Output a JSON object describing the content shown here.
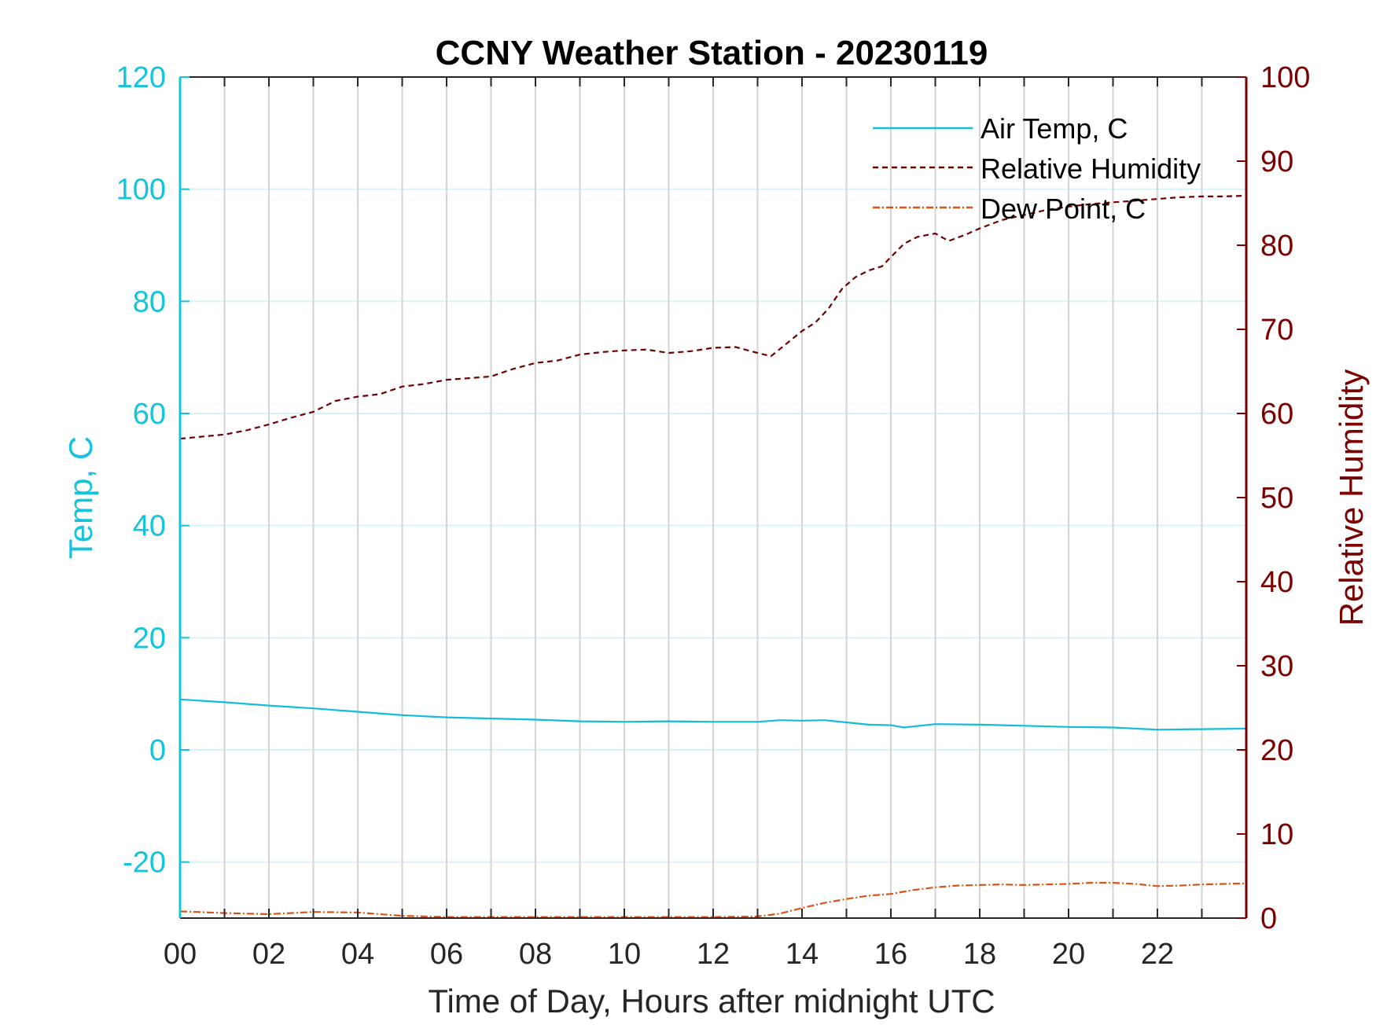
{
  "chart_data": {
    "type": "line",
    "title": "CCNY Weather Station - 20230119",
    "xlabel": "Time of Day, Hours after midnight UTC",
    "ylabel_left": "Temp, C",
    "ylabel_right": "Relative Humidity",
    "xlim": [
      0,
      24
    ],
    "ylim_left": [
      -30,
      120
    ],
    "ylim_right": [
      0,
      100
    ],
    "x_ticks": [
      0,
      2,
      4,
      6,
      8,
      10,
      12,
      14,
      16,
      18,
      20,
      22
    ],
    "x_tick_labels": [
      "00",
      "02",
      "04",
      "06",
      "08",
      "10",
      "12",
      "14",
      "16",
      "18",
      "20",
      "22"
    ],
    "y_left_ticks": [
      -20,
      0,
      20,
      40,
      60,
      80,
      100,
      120
    ],
    "y_left_tick_labels": [
      "-20",
      "0",
      "20",
      "40",
      "60",
      "80",
      "100",
      "120"
    ],
    "y_right_ticks": [
      0,
      10,
      20,
      30,
      40,
      50,
      60,
      70,
      80,
      90,
      100
    ],
    "y_right_tick_labels": [
      "0",
      "10",
      "20",
      "30",
      "40",
      "50",
      "60",
      "70",
      "80",
      "90",
      "100"
    ],
    "grid": true,
    "legend_position": "top-right",
    "colors": {
      "left_axis": "#14c3dc",
      "right_axis": "#7a0000",
      "air_temp": "#14bcd9",
      "rh": "#6e0000",
      "dew_point": "#d95319",
      "grid_vertical": "#d4d4d4",
      "grid_horizontal": "#d6f3f7"
    },
    "series": [
      {
        "name": "Air Temp, C",
        "axis": "left",
        "style": "solid",
        "x": [
          0,
          1,
          2,
          3,
          4,
          5,
          6,
          7,
          8,
          9,
          10,
          11,
          12,
          13,
          13.5,
          14,
          14.5,
          15,
          15.5,
          16,
          16.3,
          17,
          18,
          19,
          20,
          21,
          22,
          23,
          24
        ],
        "y": [
          9.0,
          8.5,
          7.9,
          7.4,
          6.8,
          6.2,
          5.8,
          5.6,
          5.4,
          5.1,
          5.0,
          5.1,
          5.0,
          5.0,
          5.3,
          5.2,
          5.3,
          4.9,
          4.5,
          4.4,
          4.0,
          4.6,
          4.5,
          4.3,
          4.1,
          4.0,
          3.6,
          3.7,
          3.8
        ]
      },
      {
        "name": "Relative Humidity",
        "axis": "right",
        "style": "dashed",
        "x": [
          0,
          1,
          1.5,
          2,
          2.5,
          3,
          3.5,
          4,
          4.5,
          5,
          5.5,
          6,
          6.5,
          7,
          7.5,
          8,
          8.5,
          9,
          9.5,
          10,
          10.5,
          11,
          11.5,
          12,
          12.5,
          13,
          13.3,
          13.7,
          14,
          14.3,
          14.6,
          14.9,
          15.2,
          15.5,
          15.8,
          16,
          16.3,
          16.6,
          17,
          17.3,
          17.7,
          18,
          18.5,
          19,
          19.5,
          20,
          20.5,
          21,
          21.5,
          22,
          22.5,
          23,
          23.5,
          24
        ],
        "y": [
          57,
          57.5,
          58,
          58.7,
          59.5,
          60.2,
          61.5,
          62,
          62.3,
          63.2,
          63.5,
          64,
          64.2,
          64.4,
          65.3,
          66,
          66.3,
          67,
          67.3,
          67.5,
          67.6,
          67.2,
          67.4,
          67.8,
          67.9,
          67.2,
          66.8,
          68.5,
          69.8,
          70.8,
          72.5,
          74.8,
          76.2,
          77,
          77.5,
          78.6,
          80.2,
          81,
          81.4,
          80.5,
          81.3,
          82,
          83,
          83.6,
          84.2,
          84.6,
          84.9,
          85.1,
          85.3,
          85.5,
          85.7,
          85.8,
          85.8,
          85.9
        ]
      },
      {
        "name": "Dew Point, C",
        "axis": "left",
        "style": "dash-dot",
        "x": [
          0,
          1,
          2,
          3,
          4,
          5,
          6,
          7,
          8,
          9,
          10,
          11,
          12,
          13,
          13.5,
          14,
          14.5,
          15,
          15.5,
          16,
          16.5,
          17,
          17.5,
          18,
          18.5,
          19,
          19.5,
          20,
          20.5,
          21,
          21.5,
          22,
          22.5,
          23,
          23.5,
          24
        ],
        "y": [
          -28.8,
          -29.1,
          -29.3,
          -28.9,
          -29.0,
          -29.6,
          -29.8,
          -29.8,
          -29.8,
          -29.8,
          -29.8,
          -29.8,
          -29.8,
          -29.7,
          -29.2,
          -28.2,
          -27.3,
          -26.6,
          -26.0,
          -25.7,
          -25.0,
          -24.5,
          -24.2,
          -24.1,
          -24.0,
          -24.1,
          -24.0,
          -23.9,
          -23.7,
          -23.7,
          -23.9,
          -24.3,
          -24.2,
          -24.0,
          -23.9,
          -23.8
        ]
      }
    ]
  }
}
